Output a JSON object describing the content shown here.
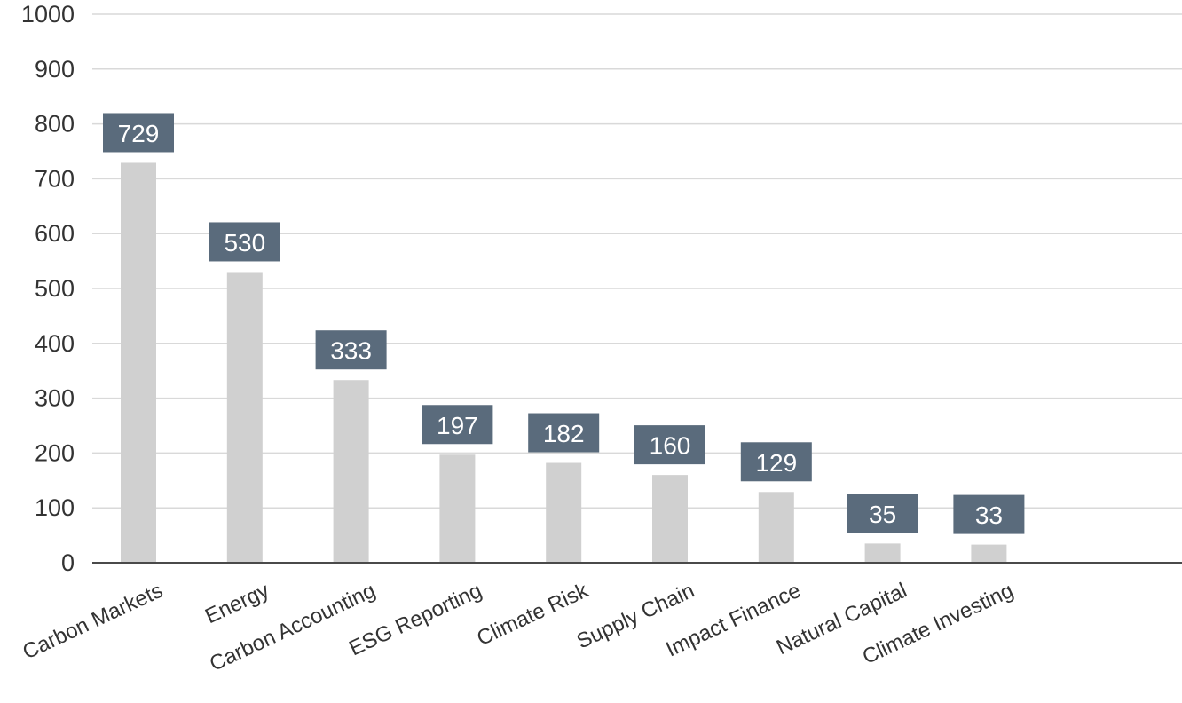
{
  "chart_data": {
    "type": "bar",
    "title": "",
    "xlabel": "",
    "ylabel": "",
    "categories": [
      "Carbon Markets",
      "Energy",
      "Carbon Accounting",
      "ESG Reporting",
      "Climate Risk",
      "Supply Chain",
      "Impact Finance",
      "Natural Capital",
      "Climate Investing"
    ],
    "values": [
      729,
      530,
      333,
      197,
      182,
      160,
      129,
      35,
      33
    ],
    "ylim": [
      0,
      1000
    ],
    "yticks": [
      0,
      100,
      200,
      300,
      400,
      500,
      600,
      700,
      800,
      900,
      1000
    ],
    "grid": true,
    "legend": "none",
    "colors": {
      "bar": "#d0d0d0",
      "label_box": "#5a6b7c",
      "label_text": "#ffffff",
      "grid": "#d9d9d9",
      "axis": "#4a4a4a"
    }
  }
}
